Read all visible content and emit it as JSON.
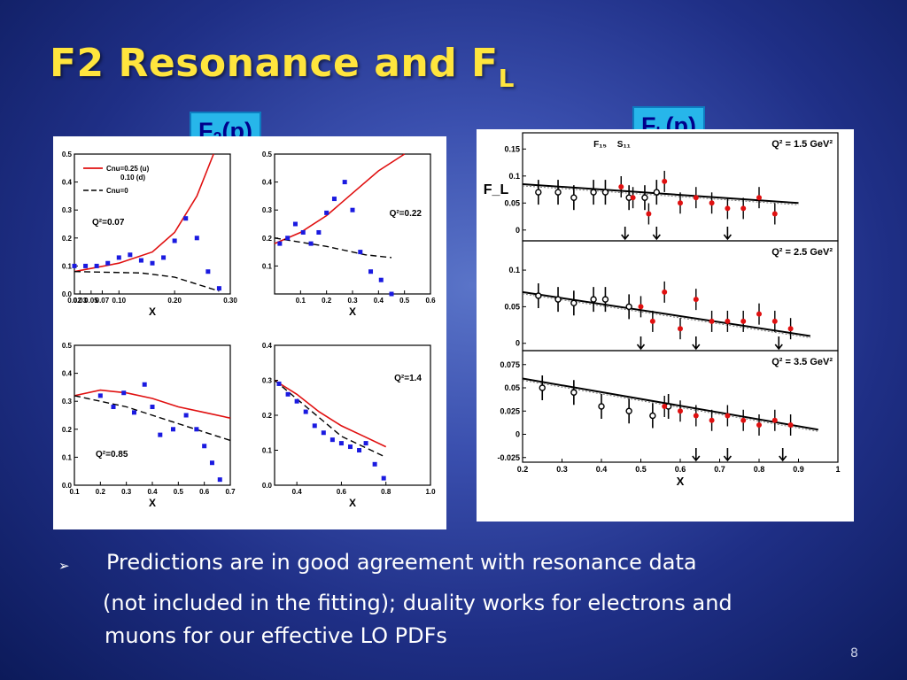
{
  "slide": {
    "title_main": "F2 Resonance and F",
    "title_sub": "L",
    "label_f2_main": "F",
    "label_f2_sub": "2",
    "label_f2_tail": "(p)",
    "label_fl_main": "F",
    "label_fl_sub": "L",
    "label_fl_tail": "(p)",
    "bullet_marker": "➢",
    "bullet_line1": "Predictions are in good agreement with resonance data",
    "bullet_line2": "(not included in the fitting); duality works for electrons and",
    "bullet_line3": "muons for our effective LO PDFs",
    "page_number": "8"
  },
  "colors": {
    "title": "#ffe53d",
    "tag_bg": "#27b6ea",
    "tag_text": "#00008b",
    "data_blue": "#1a1ae0",
    "curve_red": "#e01010",
    "data_red": "#e01010"
  },
  "chart_data": [
    {
      "type": "scatter",
      "id": "f2-q007",
      "annotation": "Q²=0.07",
      "legend": [
        "Cnu=0.25 (u)",
        "0.10 (d)",
        "Cnu=0"
      ],
      "xlabel": "X",
      "xlim": [
        0.02,
        0.3
      ],
      "ylim": [
        0.0,
        0.5
      ],
      "xticks": [
        "0.02",
        "0.03",
        "0.05",
        "0.07",
        "0.10",
        "0.20",
        "0.30"
      ],
      "yticks": [
        "0.0",
        "0.1",
        "0.2",
        "0.3",
        "0.4",
        "0.5"
      ],
      "data_points": [
        [
          0.02,
          0.1
        ],
        [
          0.04,
          0.1
        ],
        [
          0.06,
          0.1
        ],
        [
          0.08,
          0.11
        ],
        [
          0.1,
          0.13
        ],
        [
          0.12,
          0.14
        ],
        [
          0.14,
          0.12
        ],
        [
          0.16,
          0.11
        ],
        [
          0.18,
          0.13
        ],
        [
          0.2,
          0.19
        ],
        [
          0.22,
          0.27
        ],
        [
          0.24,
          0.2
        ],
        [
          0.26,
          0.08
        ],
        [
          0.28,
          0.02
        ]
      ],
      "curve_red": [
        [
          0.02,
          0.08
        ],
        [
          0.1,
          0.11
        ],
        [
          0.16,
          0.15
        ],
        [
          0.2,
          0.22
        ],
        [
          0.24,
          0.35
        ],
        [
          0.27,
          0.5
        ]
      ],
      "curve_dash": [
        [
          0.02,
          0.08
        ],
        [
          0.14,
          0.075
        ],
        [
          0.2,
          0.06
        ],
        [
          0.28,
          0.01
        ]
      ]
    },
    {
      "type": "scatter",
      "id": "f2-q022",
      "annotation": "Q²=0.22",
      "xlabel": "X",
      "xlim": [
        0.0,
        0.6
      ],
      "ylim": [
        0.0,
        0.5
      ],
      "xticks": [
        "0.1",
        "0.2",
        "0.3",
        "0.4",
        "0.5",
        "0.6"
      ],
      "yticks": [
        "0.1",
        "0.2",
        "0.3",
        "0.4",
        "0.5"
      ],
      "data_points": [
        [
          0.02,
          0.18
        ],
        [
          0.05,
          0.2
        ],
        [
          0.08,
          0.25
        ],
        [
          0.11,
          0.22
        ],
        [
          0.14,
          0.18
        ],
        [
          0.17,
          0.22
        ],
        [
          0.2,
          0.29
        ],
        [
          0.23,
          0.34
        ],
        [
          0.27,
          0.4
        ],
        [
          0.3,
          0.3
        ],
        [
          0.33,
          0.15
        ],
        [
          0.37,
          0.08
        ],
        [
          0.41,
          0.05
        ],
        [
          0.45,
          0.0
        ]
      ],
      "curve_red": [
        [
          0.0,
          0.18
        ],
        [
          0.1,
          0.22
        ],
        [
          0.2,
          0.28
        ],
        [
          0.3,
          0.36
        ],
        [
          0.4,
          0.44
        ],
        [
          0.5,
          0.5
        ]
      ],
      "curve_dash": [
        [
          0.0,
          0.2
        ],
        [
          0.2,
          0.17
        ],
        [
          0.35,
          0.14
        ],
        [
          0.45,
          0.13
        ]
      ]
    },
    {
      "type": "scatter",
      "id": "f2-q085",
      "annotation": "Q²=0.85",
      "xlabel": "X",
      "xlim": [
        0.1,
        0.7
      ],
      "ylim": [
        0.0,
        0.5
      ],
      "xticks": [
        "0.1",
        "0.2",
        "0.3",
        "0.4",
        "0.5",
        "0.6",
        "0.7"
      ],
      "yticks": [
        "0.0",
        "0.1",
        "0.2",
        "0.3",
        "0.4",
        "0.5"
      ],
      "data_points": [
        [
          0.2,
          0.32
        ],
        [
          0.25,
          0.28
        ],
        [
          0.29,
          0.33
        ],
        [
          0.33,
          0.26
        ],
        [
          0.37,
          0.36
        ],
        [
          0.4,
          0.28
        ],
        [
          0.43,
          0.18
        ],
        [
          0.48,
          0.2
        ],
        [
          0.53,
          0.25
        ],
        [
          0.57,
          0.2
        ],
        [
          0.6,
          0.14
        ],
        [
          0.63,
          0.08
        ],
        [
          0.66,
          0.02
        ]
      ],
      "curve_red": [
        [
          0.1,
          0.32
        ],
        [
          0.2,
          0.34
        ],
        [
          0.3,
          0.33
        ],
        [
          0.4,
          0.31
        ],
        [
          0.5,
          0.28
        ],
        [
          0.6,
          0.26
        ],
        [
          0.7,
          0.24
        ]
      ],
      "curve_dash": [
        [
          0.1,
          0.32
        ],
        [
          0.3,
          0.28
        ],
        [
          0.5,
          0.22
        ],
        [
          0.7,
          0.16
        ]
      ]
    },
    {
      "type": "scatter",
      "id": "f2-q14",
      "annotation": "Q²=1.4",
      "xlabel": "X",
      "xlim": [
        0.3,
        1.0
      ],
      "ylim": [
        0.0,
        0.4
      ],
      "xticks": [
        "0.4",
        "0.6",
        "0.8",
        "1.0"
      ],
      "yticks": [
        "0.0",
        "0.1",
        "0.2",
        "0.3",
        "0.4"
      ],
      "data_points": [
        [
          0.32,
          0.29
        ],
        [
          0.36,
          0.26
        ],
        [
          0.4,
          0.24
        ],
        [
          0.44,
          0.21
        ],
        [
          0.48,
          0.17
        ],
        [
          0.52,
          0.15
        ],
        [
          0.56,
          0.13
        ],
        [
          0.6,
          0.12
        ],
        [
          0.64,
          0.11
        ],
        [
          0.68,
          0.1
        ],
        [
          0.71,
          0.12
        ],
        [
          0.75,
          0.06
        ],
        [
          0.79,
          0.02
        ]
      ],
      "curve_red": [
        [
          0.3,
          0.3
        ],
        [
          0.4,
          0.26
        ],
        [
          0.5,
          0.21
        ],
        [
          0.6,
          0.17
        ],
        [
          0.7,
          0.14
        ],
        [
          0.8,
          0.11
        ]
      ],
      "curve_dash": [
        [
          0.3,
          0.3
        ],
        [
          0.45,
          0.22
        ],
        [
          0.6,
          0.14
        ],
        [
          0.8,
          0.08
        ]
      ]
    },
    {
      "type": "scatter",
      "id": "fl-q15",
      "annotation": "Q² = 1.5 GeV²",
      "resonances": [
        "F₁₅",
        "S₁₁"
      ],
      "ylabel": "F_L",
      "xlim": [
        0.2,
        1.0
      ],
      "ylim": [
        -0.02,
        0.18
      ],
      "yticks": [
        "0",
        "0.05",
        "0.1",
        "0.15"
      ],
      "red_points": [
        [
          0.45,
          0.08
        ],
        [
          0.48,
          0.06
        ],
        [
          0.52,
          0.03
        ],
        [
          0.56,
          0.09
        ],
        [
          0.6,
          0.05
        ],
        [
          0.64,
          0.06
        ],
        [
          0.68,
          0.05
        ],
        [
          0.72,
          0.04
        ],
        [
          0.76,
          0.04
        ],
        [
          0.8,
          0.06
        ],
        [
          0.84,
          0.03
        ]
      ],
      "black_points": [
        [
          0.24,
          0.07
        ],
        [
          0.29,
          0.07
        ],
        [
          0.33,
          0.06
        ],
        [
          0.38,
          0.07
        ],
        [
          0.41,
          0.07
        ],
        [
          0.47,
          0.06
        ],
        [
          0.51,
          0.06
        ],
        [
          0.54,
          0.07
        ]
      ],
      "fit_line": [
        [
          0.2,
          0.085
        ],
        [
          0.9,
          0.05
        ]
      ],
      "arrows_x": [
        0.46,
        0.54,
        0.72
      ]
    },
    {
      "type": "scatter",
      "id": "fl-q25",
      "annotation": "Q² = 2.5 GeV²",
      "xlim": [
        0.2,
        1.0
      ],
      "ylim": [
        -0.01,
        0.14
      ],
      "yticks": [
        "0",
        "0.05",
        "0.1"
      ],
      "red_points": [
        [
          0.5,
          0.05
        ],
        [
          0.53,
          0.03
        ],
        [
          0.56,
          0.07
        ],
        [
          0.6,
          0.02
        ],
        [
          0.64,
          0.06
        ],
        [
          0.68,
          0.03
        ],
        [
          0.72,
          0.03
        ],
        [
          0.76,
          0.03
        ],
        [
          0.8,
          0.04
        ],
        [
          0.84,
          0.03
        ],
        [
          0.88,
          0.02
        ]
      ],
      "black_points": [
        [
          0.24,
          0.065
        ],
        [
          0.29,
          0.06
        ],
        [
          0.33,
          0.055
        ],
        [
          0.38,
          0.06
        ],
        [
          0.41,
          0.06
        ],
        [
          0.47,
          0.05
        ]
      ],
      "fit_line": [
        [
          0.2,
          0.07
        ],
        [
          0.93,
          0.01
        ]
      ],
      "arrows_x": [
        0.5,
        0.64,
        0.85
      ]
    },
    {
      "type": "scatter",
      "id": "fl-q35",
      "annotation": "Q² = 3.5 GeV²",
      "xlabel": "X",
      "xlim": [
        0.2,
        1.0
      ],
      "ylim": [
        -0.03,
        0.09
      ],
      "xticks": [
        "0.2",
        "0.3",
        "0.4",
        "0.5",
        "0.6",
        "0.7",
        "0.8",
        "0.9",
        "1"
      ],
      "yticks": [
        "-0.025",
        "0",
        "0.025",
        "0.05",
        "0.075"
      ],
      "red_points": [
        [
          0.56,
          0.03
        ],
        [
          0.6,
          0.025
        ],
        [
          0.64,
          0.02
        ],
        [
          0.68,
          0.015
        ],
        [
          0.72,
          0.02
        ],
        [
          0.76,
          0.015
        ],
        [
          0.8,
          0.01
        ],
        [
          0.84,
          0.015
        ],
        [
          0.88,
          0.01
        ]
      ],
      "black_points": [
        [
          0.25,
          0.05
        ],
        [
          0.33,
          0.045
        ],
        [
          0.4,
          0.03
        ],
        [
          0.47,
          0.025
        ],
        [
          0.53,
          0.02
        ],
        [
          0.57,
          0.03
        ]
      ],
      "fit_line": [
        [
          0.2,
          0.06
        ],
        [
          0.95,
          0.005
        ]
      ],
      "arrows_x": [
        0.64,
        0.72,
        0.86
      ]
    }
  ]
}
